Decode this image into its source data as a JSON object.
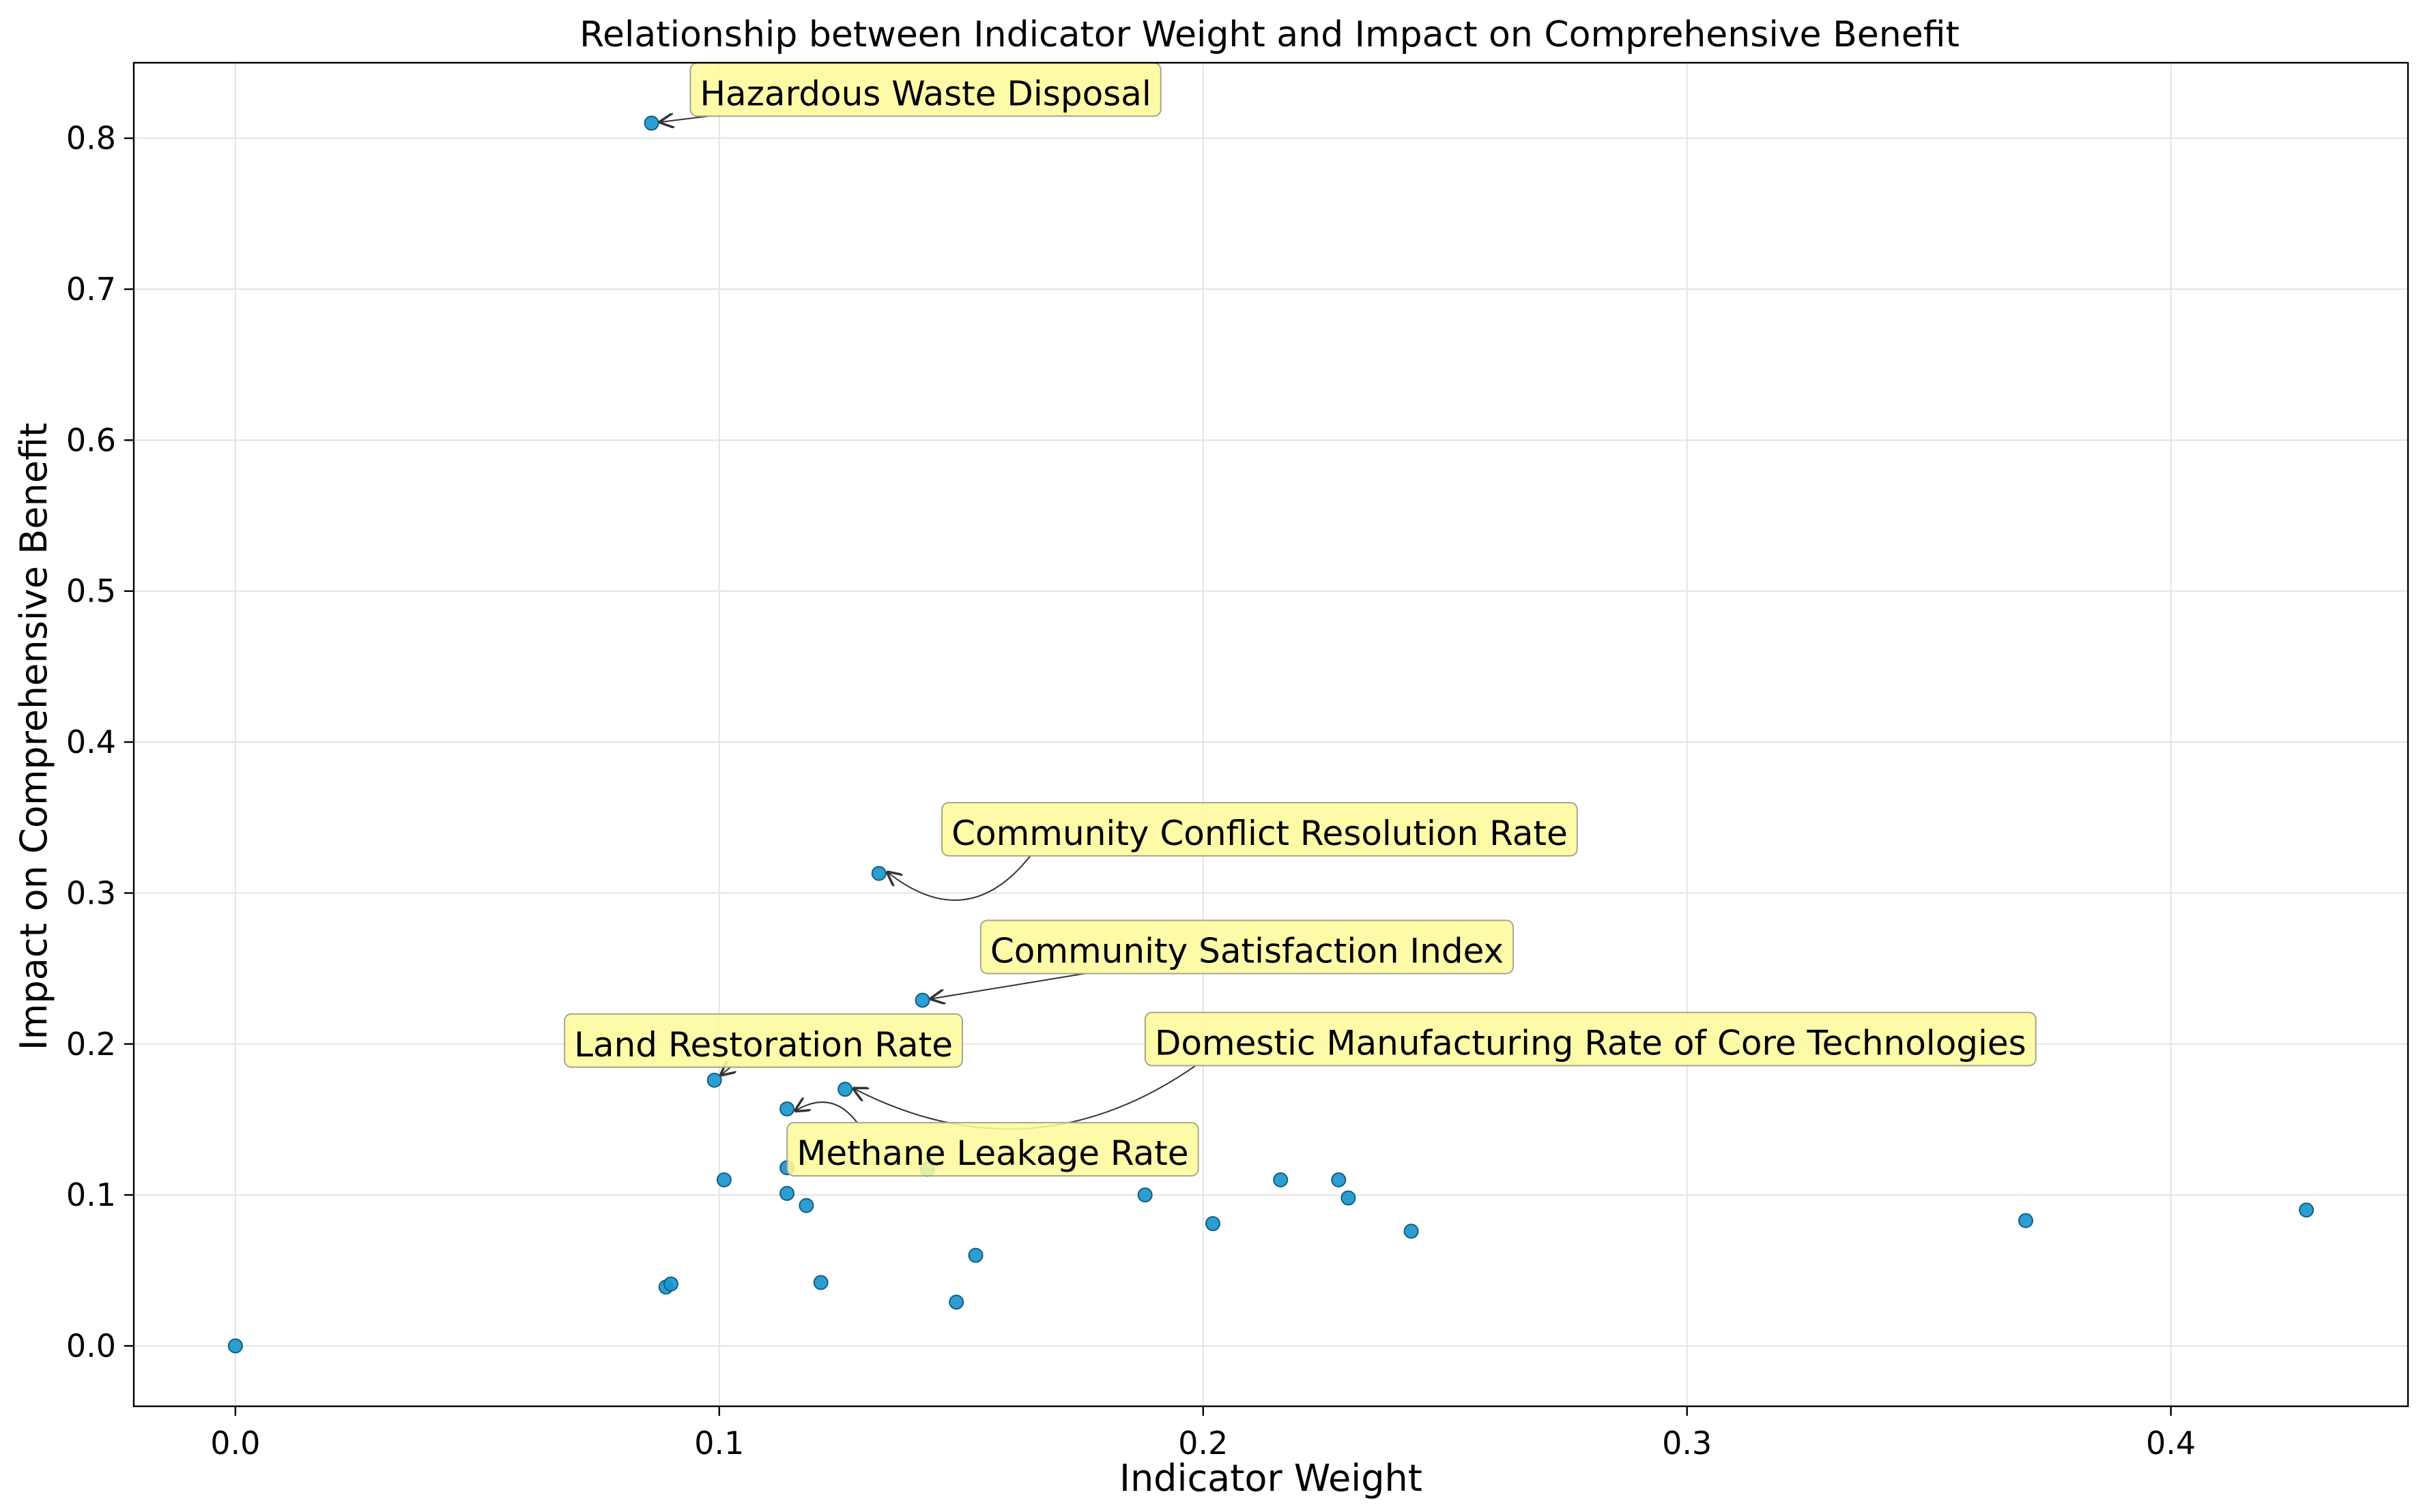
{
  "chart_data": {
    "type": "scatter",
    "title": "Relationship between Indicator Weight and Impact on Comprehensive Benefit",
    "xlabel": "Indicator Weight",
    "ylabel": "Impact on Comprehensive Benefit",
    "xlim": [
      -0.021,
      0.449
    ],
    "ylim": [
      -0.04,
      0.85
    ],
    "xticks": [
      0.0,
      0.1,
      0.2,
      0.3,
      0.4
    ],
    "yticks": [
      0.0,
      0.1,
      0.2,
      0.3,
      0.4,
      0.5,
      0.6,
      0.7,
      0.8
    ],
    "grid": true,
    "point_color": "#1a96cc",
    "points": [
      {
        "x": 0.0,
        "y": 0.0
      },
      {
        "x": 0.086,
        "y": 0.81
      },
      {
        "x": 0.089,
        "y": 0.039
      },
      {
        "x": 0.09,
        "y": 0.041
      },
      {
        "x": 0.099,
        "y": 0.176
      },
      {
        "x": 0.101,
        "y": 0.11
      },
      {
        "x": 0.114,
        "y": 0.157
      },
      {
        "x": 0.114,
        "y": 0.118
      },
      {
        "x": 0.114,
        "y": 0.101
      },
      {
        "x": 0.118,
        "y": 0.093
      },
      {
        "x": 0.121,
        "y": 0.042
      },
      {
        "x": 0.126,
        "y": 0.17
      },
      {
        "x": 0.133,
        "y": 0.313
      },
      {
        "x": 0.142,
        "y": 0.229
      },
      {
        "x": 0.143,
        "y": 0.117
      },
      {
        "x": 0.149,
        "y": 0.029
      },
      {
        "x": 0.153,
        "y": 0.06
      },
      {
        "x": 0.188,
        "y": 0.1
      },
      {
        "x": 0.202,
        "y": 0.081
      },
      {
        "x": 0.216,
        "y": 0.11
      },
      {
        "x": 0.228,
        "y": 0.11
      },
      {
        "x": 0.23,
        "y": 0.098
      },
      {
        "x": 0.243,
        "y": 0.076
      },
      {
        "x": 0.37,
        "y": 0.083
      },
      {
        "x": 0.428,
        "y": 0.09
      }
    ],
    "annotations": [
      {
        "label": "Hazardous Waste Disposal",
        "x": 0.086,
        "y": 0.81,
        "tx": 0.096,
        "ty": 0.83,
        "curve": 0
      },
      {
        "label": "Community Conflict Resolution Rate",
        "x": 0.133,
        "y": 0.313,
        "tx": 0.148,
        "ty": 0.34,
        "curve": -0.5
      },
      {
        "label": "Community Satisfaction Index",
        "x": 0.142,
        "y": 0.229,
        "tx": 0.156,
        "ty": 0.262,
        "curve": 0
      },
      {
        "label": "Domestic Manufacturing Rate of Core Technologies",
        "x": 0.126,
        "y": 0.17,
        "tx": 0.19,
        "ty": 0.201,
        "curve": -0.3
      },
      {
        "label": "Land Restoration Rate",
        "x": 0.099,
        "y": 0.176,
        "tx": 0.07,
        "ty": 0.2,
        "curve": 0
      },
      {
        "label": "Methane Leakage Rate",
        "x": 0.114,
        "y": 0.157,
        "tx": 0.116,
        "ty": 0.128,
        "curve": 0.45
      }
    ]
  }
}
